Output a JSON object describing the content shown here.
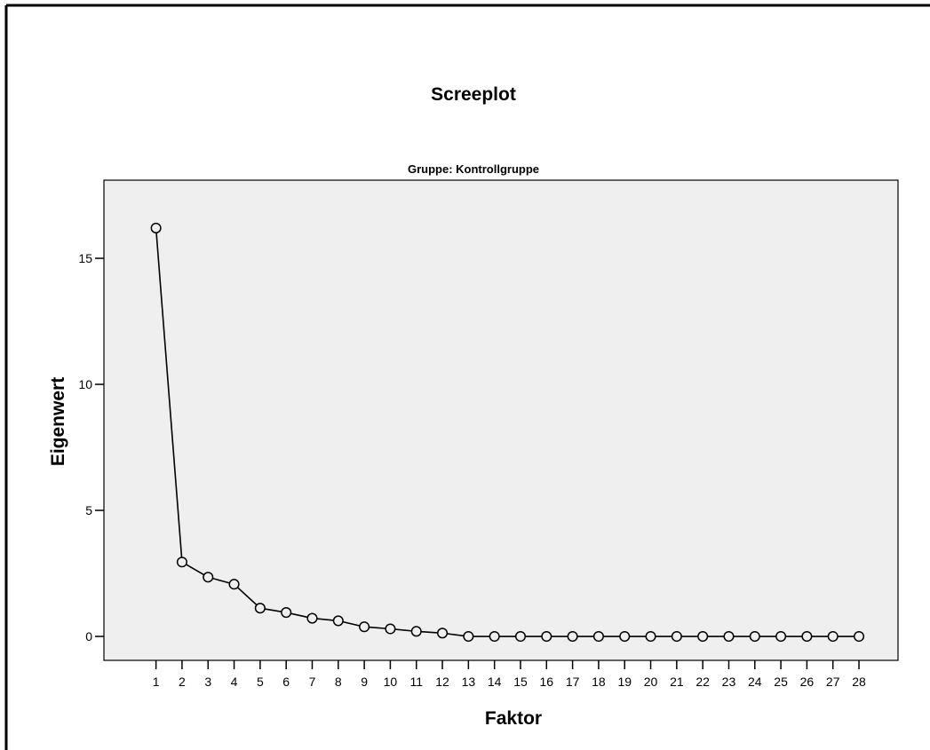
{
  "chart_data": {
    "type": "line",
    "title": "Screeplot",
    "subtitle": "Gruppe: Kontrollgruppe",
    "xlabel": "Faktor",
    "ylabel": "Eigenwert",
    "x": [
      1,
      2,
      3,
      4,
      5,
      6,
      7,
      8,
      9,
      10,
      11,
      12,
      13,
      14,
      15,
      16,
      17,
      18,
      19,
      20,
      21,
      22,
      23,
      24,
      25,
      26,
      27,
      28
    ],
    "x_tick_labels": [
      "1",
      "2",
      "3",
      "4",
      "5",
      "6",
      "7",
      "8",
      "9",
      "10",
      "11",
      "12",
      "13",
      "14",
      "15",
      "16",
      "17",
      "18",
      "19",
      "20",
      "21",
      "22",
      "23",
      "24",
      "25",
      "26",
      "27",
      "28"
    ],
    "y_ticks": [
      0,
      5,
      10,
      15
    ],
    "y_tick_labels": [
      "0",
      "5",
      "10",
      "15"
    ],
    "series": [
      {
        "values": [
          16.2,
          2.95,
          2.35,
          2.07,
          1.12,
          0.95,
          0.72,
          0.62,
          0.38,
          0.3,
          0.2,
          0.13,
          0.0,
          0.0,
          0.0,
          0.0,
          0.0,
          0.0,
          0.0,
          0.0,
          0.0,
          0.0,
          0.0,
          0.0,
          0.0,
          0.0,
          0.0,
          0.0
        ]
      }
    ],
    "xlim": [
      -1,
      29.5
    ],
    "ylim": [
      -0.95,
      18.1
    ],
    "grid": false,
    "marker": "open-circle",
    "colors": {
      "plot_background": "#efefef",
      "line": "#000000",
      "marker_fill": "#efefef",
      "frame": "#000000"
    }
  }
}
